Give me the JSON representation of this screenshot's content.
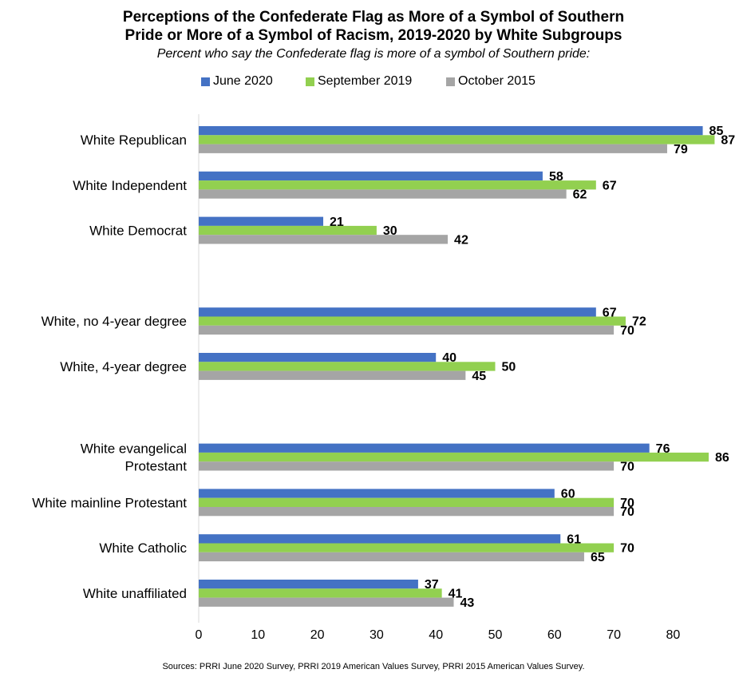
{
  "chart_data": {
    "type": "bar",
    "orientation": "horizontal",
    "title_line1": "Perceptions of the Confederate Flag as More of a Symbol of Southern",
    "title_line2": "Pride or More of a Symbol of Racism, 2019-2020 by White Subgroups",
    "subtitle": "Percent who say the Confederate flag is more of a symbol of Southern pride:",
    "legend_position": "top",
    "grid": false,
    "xlim": [
      0,
      87
    ],
    "x_ticks": [
      0,
      10,
      20,
      30,
      40,
      50,
      60,
      70,
      80
    ],
    "categories": [
      [
        "White Republican"
      ],
      [
        "White Independent"
      ],
      [
        "White Democrat"
      ],
      [
        "White, no 4-year degree"
      ],
      [
        "White, 4-year degree"
      ],
      [
        "White evangelical",
        "Protestant"
      ],
      [
        "White mainline Protestant"
      ],
      [
        "White Catholic"
      ],
      [
        "White unaffiliated"
      ]
    ],
    "groups": [
      [
        0,
        1,
        2
      ],
      [
        3,
        4
      ],
      [
        5,
        6,
        7,
        8
      ]
    ],
    "series": [
      {
        "name": "June 2020",
        "color": "#4472C4",
        "values": [
          85,
          58,
          21,
          67,
          40,
          76,
          60,
          61,
          37
        ]
      },
      {
        "name": "September 2019",
        "color": "#92D050",
        "values": [
          87,
          67,
          30,
          72,
          50,
          86,
          70,
          70,
          41
        ]
      },
      {
        "name": "October 2015",
        "color": "#A5A5A5",
        "values": [
          79,
          62,
          42,
          70,
          45,
          70,
          70,
          65,
          43
        ]
      }
    ]
  },
  "footer": "Sources: PRRI June 2020 Survey, PRRI 2019 American Values Survey, PRRI 2015 American Values Survey."
}
